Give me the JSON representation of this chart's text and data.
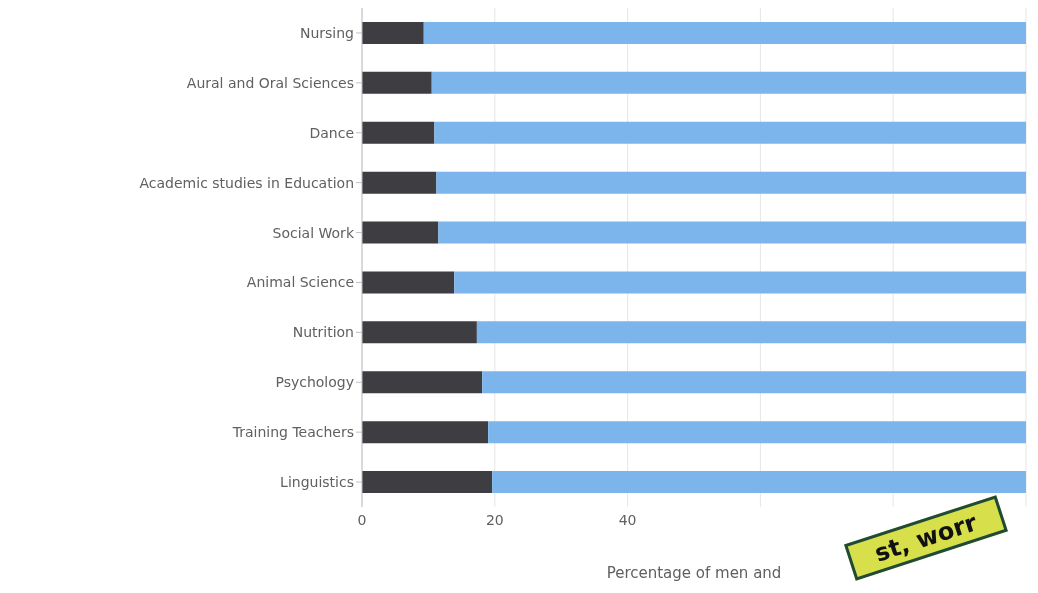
{
  "chart_data": {
    "type": "bar",
    "orientation": "horizontal",
    "stacked": true,
    "categories": [
      "Nursing",
      "Aural and Oral Sciences",
      "Dance",
      "Academic studies in Education",
      "Social Work",
      "Animal Science",
      "Nutrition",
      "Psychology",
      "Training Teachers",
      "Linguistics"
    ],
    "series": [
      {
        "color": "#3d3d42",
        "values": [
          9.3,
          10.5,
          10.9,
          11.2,
          11.5,
          13.9,
          17.3,
          18.1,
          19.0,
          19.6
        ]
      },
      {
        "color": "#7cb5ec",
        "values": [
          90.7,
          89.5,
          89.1,
          88.8,
          88.5,
          86.1,
          82.7,
          81.9,
          81.0,
          80.4
        ]
      }
    ],
    "xlim": [
      0,
      100
    ],
    "xticks": [
      0,
      20,
      40,
      {
        "value": 60,
        "label": null
      },
      {
        "value": 80,
        "label": null
      },
      {
        "value": 100,
        "label": null
      }
    ],
    "xlabel": "Percentage of men and",
    "grid": "x",
    "annotations": [
      "st, worr"
    ]
  }
}
